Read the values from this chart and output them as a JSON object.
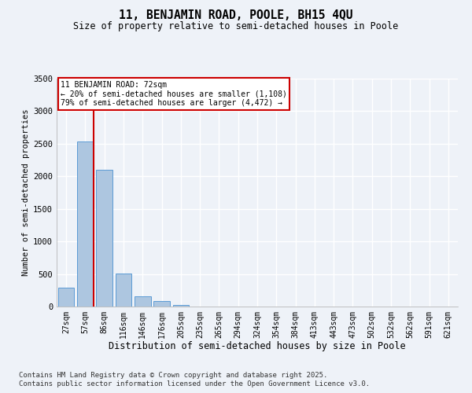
{
  "title": "11, BENJAMIN ROAD, POOLE, BH15 4QU",
  "subtitle": "Size of property relative to semi-detached houses in Poole",
  "xlabel": "Distribution of semi-detached houses by size in Poole",
  "ylabel": "Number of semi-detached properties",
  "categories": [
    "27sqm",
    "57sqm",
    "86sqm",
    "116sqm",
    "146sqm",
    "176sqm",
    "205sqm",
    "235sqm",
    "265sqm",
    "294sqm",
    "324sqm",
    "354sqm",
    "384sqm",
    "413sqm",
    "443sqm",
    "473sqm",
    "502sqm",
    "532sqm",
    "562sqm",
    "591sqm",
    "621sqm"
  ],
  "values": [
    290,
    2540,
    2100,
    510,
    155,
    80,
    30,
    5,
    0,
    0,
    0,
    0,
    0,
    0,
    0,
    0,
    0,
    0,
    0,
    0,
    0
  ],
  "bar_color": "#adc6e0",
  "bar_edge_color": "#5b9bd5",
  "vline_position": 1.425,
  "annotation_title": "11 BENJAMIN ROAD: 72sqm",
  "annotation_line1": "← 20% of semi-detached houses are smaller (1,108)",
  "annotation_line2": "79% of semi-detached houses are larger (4,472) →",
  "annotation_box_color": "#ffffff",
  "annotation_box_edge_color": "#cc0000",
  "vline_color": "#cc0000",
  "ylim": [
    0,
    3500
  ],
  "yticks": [
    0,
    500,
    1000,
    1500,
    2000,
    2500,
    3000,
    3500
  ],
  "background_color": "#eef2f8",
  "grid_color": "#ffffff",
  "footnote1": "Contains HM Land Registry data © Crown copyright and database right 2025.",
  "footnote2": "Contains public sector information licensed under the Open Government Licence v3.0."
}
